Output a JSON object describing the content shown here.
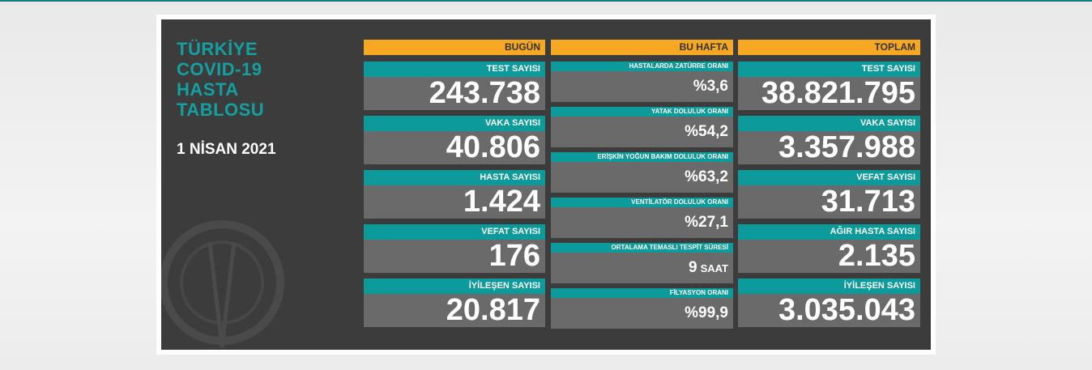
{
  "title_lines": [
    "TÜRKİYE",
    "COVID-19",
    "HASTA",
    "TABLOSU"
  ],
  "date": "1 NİSAN 2021",
  "columns": [
    {
      "header": "BUGÜN",
      "items": [
        {
          "label": "TEST SAYISI",
          "value": "243.738"
        },
        {
          "label": "VAKA SAYISI",
          "value": "40.806"
        },
        {
          "label": "HASTA SAYISI",
          "value": "1.424"
        },
        {
          "label": "VEFAT SAYISI",
          "value": "176"
        },
        {
          "label": "İYİLEŞEN SAYISI",
          "value": "20.817"
        }
      ]
    },
    {
      "header": "BU HAFTA",
      "items": [
        {
          "label": "HASTALARDA ZATÜRRE ORANI",
          "value": "%3,6"
        },
        {
          "label": "YATAK DOLULUK ORANI",
          "value": "%54,2"
        },
        {
          "label": "ERİŞKİN YOĞUN BAKIM DOLULUK ORANI",
          "value": "%63,2"
        },
        {
          "label": "VENTİLATÖR DOLULUK ORANI",
          "value": "%27,1"
        },
        {
          "label": "ORTALAMA TEMASLI TESPİT SÜRESİ",
          "value": "9",
          "unit": "SAAT"
        },
        {
          "label": "FİLYASYON ORANI",
          "value": "%99,9"
        }
      ]
    },
    {
      "header": "TOPLAM",
      "items": [
        {
          "label": "TEST SAYISI",
          "value": "38.821.795"
        },
        {
          "label": "VAKA SAYISI",
          "value": "3.357.988"
        },
        {
          "label": "VEFAT SAYISI",
          "value": "31.713"
        },
        {
          "label": "AĞIR HASTA SAYISI",
          "value": "2.135"
        },
        {
          "label": "İYİLEŞEN SAYISI",
          "value": "3.035.043"
        }
      ]
    }
  ]
}
